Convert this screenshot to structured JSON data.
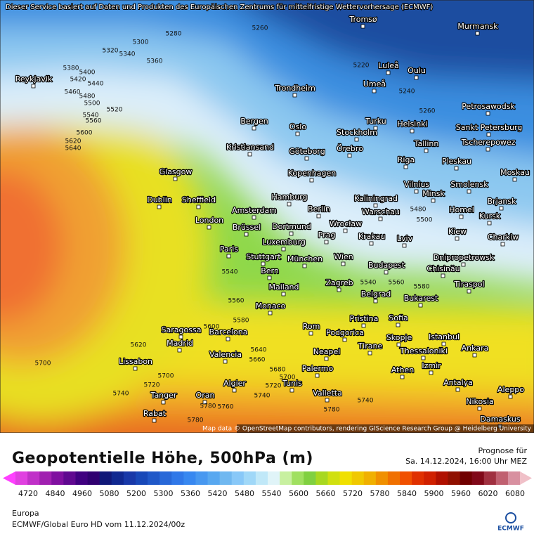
{
  "header_note": "Dieser Service basiert auf Daten und Produkten des Europäischen Zentrums für mittelfristige Wettervorhersage (ECMWF)",
  "map": {
    "cities": [
      "Tromsø",
      "Murmansk",
      "Reykjavik",
      "Luleå",
      "Oulu",
      "Trondheim",
      "Umeå",
      "Petrosawodsk",
      "Bergen",
      "Oslo",
      "Turku",
      "Helsinki",
      "Sankt Petersburg",
      "Stockholm",
      "Kristiansand",
      "Göteborg",
      "Örebro",
      "Tallinn",
      "Tscherepowez",
      "Riga",
      "Pleskau",
      "Glasgow",
      "Kopenhagen",
      "Moskau",
      "Smolensk",
      "Vilnius",
      "Minsk",
      "Dublin",
      "Sheffield",
      "Hamburg",
      "Kaliningrad",
      "Brjansk",
      "Amsterdam",
      "Berlin",
      "Warschau",
      "Homel",
      "Kursk",
      "London",
      "Dortmund",
      "Wrocław",
      "Brüssel",
      "Prag",
      "Krakau",
      "Kiew",
      "Charkiw",
      "Luxemburg",
      "Lviv",
      "Paris",
      "Stuttgart",
      "München",
      "Wien",
      "Dnipropetrowsk",
      "Budapest",
      "Chisinău",
      "Bern",
      "Tiraspol",
      "Mailand",
      "Zagreb",
      "Belgrad",
      "Bukarest",
      "Monaco",
      "Pristina",
      "Sofia",
      "Rom",
      "Podgorica",
      "Saragossa",
      "Barcelona",
      "Istanbul",
      "Skopje",
      "Madrid",
      "Neapel",
      "Tirane",
      "Thessaloniki",
      "Ankara",
      "Valencia",
      "Lissabon",
      "Izmir",
      "Palermo",
      "Athen",
      "Algier",
      "Tunis",
      "Antalya",
      "Aleppo",
      "Valletta",
      "Tanger",
      "Oran",
      "Nikosia",
      "Rabat",
      "Damaskus"
    ],
    "contour_labels": [
      5260,
      5280,
      5300,
      5320,
      5340,
      5360,
      5380,
      5400,
      5420,
      5440,
      5460,
      5480,
      5500,
      5520,
      5540,
      5560,
      5600,
      5620,
      5640,
      5220,
      5240,
      5260,
      5480,
      5500,
      5540,
      5560,
      5580,
      5600,
      5620,
      5640,
      5660,
      5680,
      5700,
      5700,
      5720,
      5740,
      5740,
      5760,
      5780,
      5780,
      5740,
      5700,
      5720,
      5780,
      5580,
      5560,
      5540
    ],
    "attribution": "Map data © OpenStreetMap contributors, rendering GIScience Research Group @ Heidelberg University"
  },
  "title": "Geopotentielle Höhe, 500hPa (m)",
  "forecast_label": "Prognose für",
  "forecast_time": "Sa. 14.12.2024, 16:00 Uhr MEZ",
  "legend": {
    "ticks": [
      4720,
      4840,
      4960,
      5080,
      5200,
      5300,
      5360,
      5420,
      5480,
      5540,
      5600,
      5660,
      5720,
      5780,
      5840,
      5900,
      5960,
      6020,
      6080
    ],
    "colors": [
      "#ff40ff",
      "#e040e0",
      "#c030c8",
      "#a020b0",
      "#8010a0",
      "#600890",
      "#400080",
      "#300070",
      "#101878",
      "#102890",
      "#1838a8",
      "#1848b8",
      "#2058c8",
      "#2868d8",
      "#3078e8",
      "#3888f0",
      "#4898f0",
      "#58a8f0",
      "#70b8f0",
      "#88c8f8",
      "#a0d8f8",
      "#c0e8f8",
      "#e0f4f8",
      "#c8f0a0",
      "#a0e060",
      "#80d040",
      "#a8d820",
      "#d0e010",
      "#f0e000",
      "#f0c800",
      "#f0b000",
      "#f09000",
      "#f07000",
      "#f05000",
      "#e03000",
      "#d02000",
      "#b01000",
      "#901000",
      "#700000",
      "#800818",
      "#a03040",
      "#c06070",
      "#d890a0",
      "#f0c0c8"
    ]
  },
  "region": "Europa",
  "model_run": "ECMWF/Global Euro HD vom  11.12.2024/00z",
  "logo": "ECMWF"
}
